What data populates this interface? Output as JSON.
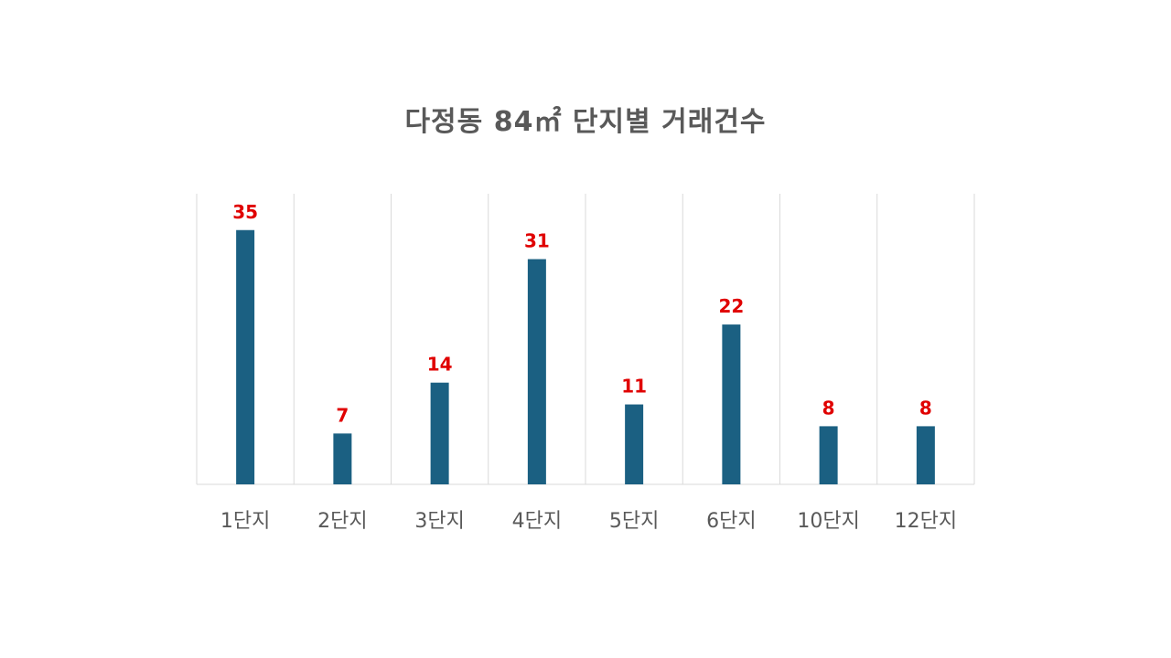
{
  "chart_data": {
    "type": "bar",
    "title": "다정동 84㎡ 단지별 거래건수",
    "xlabel": "",
    "ylabel": "",
    "categories": [
      "1단지",
      "2단지",
      "3단지",
      "4단지",
      "5단지",
      "6단지",
      "10단지",
      "12단지"
    ],
    "values": [
      35,
      7,
      14,
      31,
      11,
      22,
      8,
      8
    ],
    "ylim": [
      0,
      40
    ],
    "grid": "vertical separators between categories",
    "legend": "none",
    "data_labels": true
  },
  "colors": {
    "bar": "#1b6082",
    "data_label": "#e00000",
    "title": "#595959",
    "tick_label": "#595959",
    "grid": "#d9d9d9"
  }
}
